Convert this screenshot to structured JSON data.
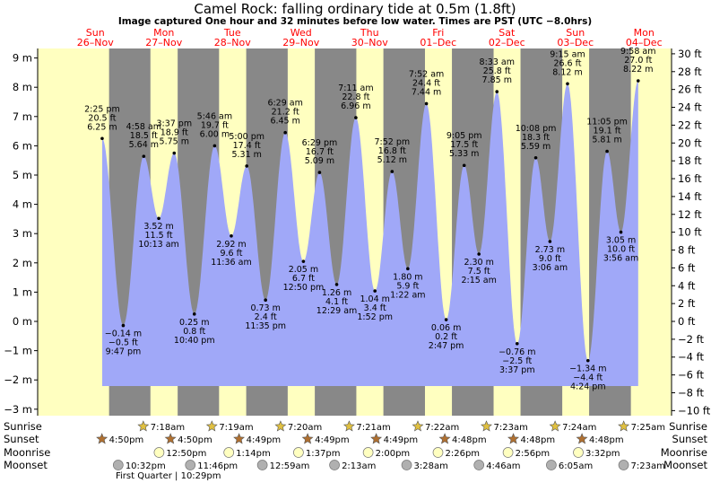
{
  "title": "Camel Rock: falling  ordinary tide at 0.5m (1.8ft)",
  "subtitle": "Image captured One hour and 32 minutes before low water. Times are PST (UTC −8.0hrs)",
  "colors": {
    "day": "#ffffc0",
    "night": "#888888",
    "tide": "#a0a8f8",
    "day_label": "#ff0000",
    "sun": "#e0c040",
    "sunset": "#b07030",
    "moon": "#ffffc0",
    "moonset": "#b0b0b0"
  },
  "chart_data": {
    "type": "area",
    "title": "Camel Rock: falling  ordinary tide at 0.5m (1.8ft)",
    "ylim_m": [
      -3.3,
      9.3
    ],
    "y_ticks_m": [
      "−3 m",
      "−2 m",
      "−1 m",
      "0 m",
      "1 m",
      "2 m",
      "3 m",
      "4 m",
      "5 m",
      "6 m",
      "7 m",
      "8 m",
      "9 m"
    ],
    "y_ticks_ft": [
      "−10 ft",
      "−8 ft",
      "−6 ft",
      "−4 ft",
      "−2 ft",
      "0 ft",
      "2 ft",
      "4 ft",
      "6 ft",
      "8 ft",
      "10 ft",
      "12 ft",
      "14 ft",
      "16 ft",
      "18 ft",
      "20 ft",
      "22 ft",
      "24 ft",
      "26 ft",
      "28 ft",
      "30 ft"
    ],
    "days": [
      {
        "name": "Sun",
        "date": "26–Nov"
      },
      {
        "name": "Mon",
        "date": "27–Nov"
      },
      {
        "name": "Tue",
        "date": "28–Nov"
      },
      {
        "name": "Wed",
        "date": "29–Nov"
      },
      {
        "name": "Thu",
        "date": "30–Nov"
      },
      {
        "name": "Fri",
        "date": "01–Dec"
      },
      {
        "name": "Sat",
        "date": "02–Dec"
      },
      {
        "name": "Sun",
        "date": "03–Dec"
      },
      {
        "name": "Mon",
        "date": "04–Dec"
      }
    ],
    "first_day": "2023-11-26",
    "sunrise": [
      "7:18am",
      "7:19am",
      "7:20am",
      "7:21am",
      "7:22am",
      "7:23am",
      "7:24am",
      "7:25am"
    ],
    "sunset": [
      "4:50pm",
      "4:50pm",
      "4:49pm",
      "4:49pm",
      "4:49pm",
      "4:48pm",
      "4:48pm",
      "4:48pm"
    ],
    "moonrise": [
      "12:50pm",
      "1:14pm",
      "1:37pm",
      "2:00pm",
      "2:26pm",
      "2:56pm",
      "3:32pm"
    ],
    "moonset": [
      "10:32pm",
      "11:46pm",
      "12:59am",
      "2:13am",
      "3:28am",
      "4:46am",
      "6:05am",
      "7:23am"
    ],
    "moon_phase": "First Quarter | 10:29pm",
    "tides": [
      {
        "time": "2023-11-26 14:25",
        "time_label": "2:25 pm",
        "m": 6.25,
        "m_label": "6.25 m",
        "ft_label": "20.5 ft",
        "type": "high"
      },
      {
        "time": "2023-11-26 21:47",
        "time_label": "9:47 pm",
        "m": -0.14,
        "m_label": "−0.14 m",
        "ft_label": "−0.5 ft",
        "type": "low"
      },
      {
        "time": "2023-11-27 04:58",
        "time_label": "4:58 am",
        "m": 5.64,
        "m_label": "5.64 m",
        "ft_label": "18.5 ft",
        "type": "high"
      },
      {
        "time": "2023-11-27 10:13",
        "time_label": "10:13 am",
        "m": 3.52,
        "m_label": "3.52 m",
        "ft_label": "11.5 ft",
        "type": "low"
      },
      {
        "time": "2023-11-27 15:37",
        "time_label": "3:37 pm",
        "m": 5.75,
        "m_label": "5.75 m",
        "ft_label": "18.9 ft",
        "type": "high"
      },
      {
        "time": "2023-11-27 22:40",
        "time_label": "10:40 pm",
        "m": 0.25,
        "m_label": "0.25 m",
        "ft_label": "0.8 ft",
        "type": "low"
      },
      {
        "time": "2023-11-28 05:46",
        "time_label": "5:46 am",
        "m": 6.0,
        "m_label": "6.00 m",
        "ft_label": "19.7 ft",
        "type": "high"
      },
      {
        "time": "2023-11-28 11:36",
        "time_label": "11:36 am",
        "m": 2.92,
        "m_label": "2.92 m",
        "ft_label": "9.6 ft",
        "type": "low"
      },
      {
        "time": "2023-11-28 17:00",
        "time_label": "5:00 pm",
        "m": 5.31,
        "m_label": "5.31 m",
        "ft_label": "17.4 ft",
        "type": "high"
      },
      {
        "time": "2023-11-28 23:35",
        "time_label": "11:35 pm",
        "m": 0.73,
        "m_label": "0.73 m",
        "ft_label": "2.4 ft",
        "type": "low"
      },
      {
        "time": "2023-11-29 06:29",
        "time_label": "6:29 am",
        "m": 6.45,
        "m_label": "6.45 m",
        "ft_label": "21.2 ft",
        "type": "high"
      },
      {
        "time": "2023-11-29 12:50",
        "time_label": "12:50 pm",
        "m": 2.05,
        "m_label": "2.05 m",
        "ft_label": "6.7 ft",
        "type": "low"
      },
      {
        "time": "2023-11-29 18:29",
        "time_label": "6:29 pm",
        "m": 5.09,
        "m_label": "5.09 m",
        "ft_label": "16.7 ft",
        "type": "high"
      },
      {
        "time": "2023-11-30 00:29",
        "time_label": "12:29 am",
        "m": 1.26,
        "m_label": "1.26 m",
        "ft_label": "4.1 ft",
        "type": "low"
      },
      {
        "time": "2023-11-30 07:11",
        "time_label": "7:11 am",
        "m": 6.96,
        "m_label": "6.96 m",
        "ft_label": "22.8 ft",
        "type": "high"
      },
      {
        "time": "2023-11-30 13:52",
        "time_label": "1:52 pm",
        "m": 1.04,
        "m_label": "1.04 m",
        "ft_label": "3.4 ft",
        "type": "low"
      },
      {
        "time": "2023-11-30 19:52",
        "time_label": "7:52 pm",
        "m": 5.12,
        "m_label": "5.12 m",
        "ft_label": "16.8 ft",
        "type": "high"
      },
      {
        "time": "2023-12-01 01:22",
        "time_label": "1:22 am",
        "m": 1.8,
        "m_label": "1.80 m",
        "ft_label": "5.9 ft",
        "type": "low"
      },
      {
        "time": "2023-12-01 07:52",
        "time_label": "7:52 am",
        "m": 7.44,
        "m_label": "7.44 m",
        "ft_label": "24.4 ft",
        "type": "high"
      },
      {
        "time": "2023-12-01 14:47",
        "time_label": "2:47 pm",
        "m": 0.06,
        "m_label": "0.06 m",
        "ft_label": "0.2 ft",
        "type": "low"
      },
      {
        "time": "2023-12-01 21:05",
        "time_label": "9:05 pm",
        "m": 5.33,
        "m_label": "5.33 m",
        "ft_label": "17.5 ft",
        "type": "high"
      },
      {
        "time": "2023-12-02 02:15",
        "time_label": "2:15 am",
        "m": 2.3,
        "m_label": "2.30 m",
        "ft_label": "7.5 ft",
        "type": "low"
      },
      {
        "time": "2023-12-02 08:33",
        "time_label": "8:33 am",
        "m": 7.85,
        "m_label": "7.85 m",
        "ft_label": "25.8 ft",
        "type": "high"
      },
      {
        "time": "2023-12-02 15:37",
        "time_label": "3:37 pm",
        "m": -0.76,
        "m_label": "−0.76 m",
        "ft_label": "−2.5 ft",
        "type": "low"
      },
      {
        "time": "2023-12-02 22:08",
        "time_label": "10:08 pm",
        "m": 5.59,
        "m_label": "5.59 m",
        "ft_label": "18.3 ft",
        "type": "high"
      },
      {
        "time": "2023-12-03 03:06",
        "time_label": "3:06 am",
        "m": 2.73,
        "m_label": "2.73 m",
        "ft_label": "9.0 ft",
        "type": "low"
      },
      {
        "time": "2023-12-03 09:15",
        "time_label": "9:15 am",
        "m": 8.12,
        "m_label": "8.12 m",
        "ft_label": "26.6 ft",
        "type": "high"
      },
      {
        "time": "2023-12-03 16:24",
        "time_label": "4:24 pm",
        "m": -1.34,
        "m_label": "−1.34 m",
        "ft_label": "−4.4 ft",
        "type": "low"
      },
      {
        "time": "2023-12-03 23:05",
        "time_label": "11:05 pm",
        "m": 5.81,
        "m_label": "5.81 m",
        "ft_label": "19.1 ft",
        "type": "high"
      },
      {
        "time": "2023-12-04 03:56",
        "time_label": "3:56 am",
        "m": 3.05,
        "m_label": "3.05 m",
        "ft_label": "10.0 ft",
        "type": "low"
      },
      {
        "time": "2023-12-04 09:58",
        "time_label": "9:58 am",
        "m": 8.22,
        "m_label": "8.22 m",
        "ft_label": "27.0 ft",
        "type": "high"
      }
    ],
    "row_labels": {
      "sunrise": "Sunrise",
      "sunset": "Sunset",
      "moonrise": "Moonrise",
      "moonset": "Moonset"
    }
  }
}
